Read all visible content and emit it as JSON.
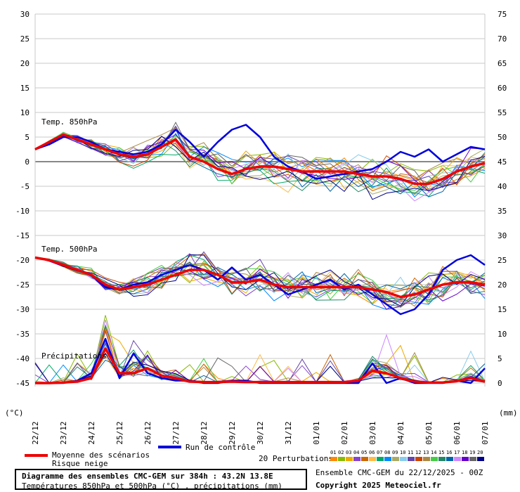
{
  "chart_data": {
    "type": "line",
    "x_dates": [
      "22/12",
      "23/12",
      "24/12",
      "25/12",
      "26/12",
      "27/12",
      "28/12",
      "29/12",
      "30/12",
      "31/12",
      "01/01",
      "02/01",
      "03/01",
      "04/01",
      "05/01",
      "06/01",
      "07/01"
    ],
    "left_axis": {
      "unit_label": "(°C)",
      "ticks": [
        30,
        25,
        20,
        15,
        10,
        5,
        0,
        -5,
        -10,
        -15,
        -20,
        -25,
        -30,
        -35,
        -40,
        -45
      ],
      "range": [
        -45,
        30
      ]
    },
    "right_axis": {
      "unit_label": "(mm)",
      "ticks": [
        75,
        70,
        65,
        60,
        55,
        50,
        45,
        40,
        35,
        30,
        25,
        20,
        15,
        10,
        5,
        0
      ],
      "range": [
        0,
        75
      ]
    },
    "panel_labels": {
      "t850": "Temp. 850hPa",
      "t500": "Temp. 500hPa",
      "precip": "Précipitations"
    },
    "series": [
      {
        "name": "Moyenne des scénarios",
        "color": "#ee0000",
        "group": "t850",
        "x": [
          0,
          0.5,
          1,
          1.5,
          2,
          2.5,
          3,
          3.5,
          4,
          4.5,
          5,
          5.5,
          6,
          6.5,
          7,
          7.5,
          8,
          8.5,
          9,
          9.5,
          10,
          10.5,
          11,
          11.5,
          12,
          12.5,
          13,
          13.5,
          14,
          14.5,
          15,
          15.5,
          16
        ],
        "y": [
          2.5,
          4,
          5.5,
          4.5,
          3.5,
          2.5,
          1.5,
          1,
          1.5,
          3,
          4.5,
          1,
          0,
          -1.5,
          -2.5,
          -1.5,
          -1,
          -1,
          -1.5,
          -2,
          -2,
          -2,
          -2,
          -2.5,
          -3,
          -3,
          -3.5,
          -4.5,
          -4.5,
          -3.5,
          -2,
          -1,
          -0.3
        ]
      },
      {
        "name": "Moyenne des scénarios",
        "color": "#ee0000",
        "group": "t500",
        "x": [
          0,
          0.5,
          1,
          1.5,
          2,
          2.5,
          3,
          3.5,
          4,
          4.5,
          5,
          5.5,
          6,
          6.5,
          7,
          7.5,
          8,
          8.5,
          9,
          9.5,
          10,
          10.5,
          11,
          11.5,
          12,
          12.5,
          13,
          13.5,
          14,
          14.5,
          15,
          15.5,
          16
        ],
        "y": [
          -19.5,
          -20,
          -21,
          -22,
          -23,
          -25,
          -26,
          -25.5,
          -25,
          -24,
          -23,
          -22,
          -22,
          -23,
          -24.5,
          -24.5,
          -24,
          -25,
          -25.5,
          -25.5,
          -25.5,
          -25.5,
          -25.5,
          -25.5,
          -26,
          -26.5,
          -27.5,
          -27,
          -26,
          -25,
          -24.5,
          -24.5,
          -25
        ]
      },
      {
        "name": "Moyenne des scénarios",
        "color": "#ee0000",
        "group": "precip",
        "x": [
          0,
          0.5,
          1,
          1.5,
          2,
          2.5,
          3,
          3.5,
          4,
          4.5,
          5,
          5.5,
          6,
          6.5,
          7,
          7.5,
          8,
          8.5,
          9,
          9.5,
          10,
          10.5,
          11,
          11.5,
          12,
          12.5,
          13,
          13.5,
          14,
          14.5,
          15,
          15.5,
          16
        ],
        "y": [
          0,
          0,
          0.1,
          0.3,
          1,
          7,
          2,
          2,
          3,
          1.5,
          1,
          0.3,
          0.2,
          0.2,
          0.3,
          0.2,
          0.2,
          0.2,
          0.2,
          0.2,
          0.2,
          0.2,
          0.2,
          0.5,
          2.5,
          2,
          1,
          0.3,
          0.1,
          0.1,
          0.4,
          1,
          0.3
        ]
      },
      {
        "name": "Run de contrôle",
        "color": "#0000dd",
        "group": "t850",
        "x": [
          0,
          0.5,
          1,
          1.5,
          2,
          2.5,
          3,
          3.5,
          4,
          4.5,
          5,
          5.5,
          6,
          6.5,
          7,
          7.5,
          8,
          8.5,
          9,
          9.5,
          10,
          10.5,
          11,
          11.5,
          12,
          12.5,
          13,
          13.5,
          14,
          14.5,
          15,
          15.5,
          16
        ],
        "y": [
          2.5,
          3.5,
          5,
          5,
          4,
          2.5,
          2,
          1.5,
          2,
          3.5,
          6.5,
          4,
          1,
          4,
          6.5,
          7.5,
          5,
          1,
          -1,
          -2,
          -3.5,
          -3,
          -2.5,
          -2,
          -1.5,
          0,
          2,
          1,
          2.5,
          0,
          1.5,
          3,
          2.5
        ]
      },
      {
        "name": "Run de contrôle",
        "color": "#0000dd",
        "group": "t500",
        "x": [
          0,
          0.5,
          1,
          1.5,
          2,
          2.5,
          3,
          3.5,
          4,
          4.5,
          5,
          5.5,
          6,
          6.5,
          7,
          7.5,
          8,
          8.5,
          9,
          9.5,
          10,
          10.5,
          11,
          11.5,
          12,
          12.5,
          13,
          13.5,
          14,
          14.5,
          15,
          15.5,
          16
        ],
        "y": [
          -19.5,
          -20,
          -21,
          -22,
          -23,
          -25.5,
          -26,
          -25,
          -24.5,
          -23,
          -22,
          -21,
          -22,
          -24,
          -21.5,
          -24,
          -23,
          -25,
          -27,
          -26,
          -25,
          -24,
          -26,
          -25,
          -27,
          -29,
          -31,
          -30,
          -27,
          -22,
          -20,
          -19,
          -21
        ]
      },
      {
        "name": "Run de contrôle",
        "color": "#0000dd",
        "group": "precip",
        "x": [
          0,
          0.5,
          1,
          1.5,
          2,
          2.5,
          3,
          3.5,
          4,
          4.5,
          5,
          5.5,
          6,
          6.5,
          7,
          7.5,
          8,
          8.5,
          9,
          9.5,
          10,
          10.5,
          11,
          11.5,
          12,
          12.5,
          13,
          13.5,
          14,
          14.5,
          15,
          15.5,
          16
        ],
        "y": [
          0,
          0,
          0,
          0.5,
          2,
          9,
          1,
          6,
          2,
          1,
          0.5,
          0.5,
          0,
          0,
          0.5,
          0.5,
          0,
          0,
          0,
          0,
          0,
          0,
          0,
          0,
          4,
          0,
          1,
          0,
          0,
          0,
          0.5,
          0,
          3
        ]
      }
    ],
    "perturbation_colors": [
      "#ff8800",
      "#88bb00",
      "#eeaa00",
      "#8844cc",
      "#cc6600",
      "#ffbb44",
      "#00aa66",
      "#0088ff",
      "#aaaa66",
      "#88ccee",
      "#6644aa",
      "#cc4400",
      "#aa8844",
      "#44cc44",
      "#228866",
      "#0066aa",
      "#cc88ff",
      "#6600cc",
      "#666666",
      "#000088"
    ],
    "perturbation_codes": [
      "01",
      "02",
      "03",
      "04",
      "05",
      "06",
      "07",
      "08",
      "09",
      "10",
      "11",
      "12",
      "13",
      "14",
      "15",
      "16",
      "17",
      "18",
      "19",
      "20"
    ]
  },
  "legend": {
    "mean_label": "Moyenne des scénarios",
    "snow_label": "Risque neige",
    "control_label": "Run de contrôle",
    "perturbations_label": "20 Perturbations"
  },
  "footer": {
    "title": "Diagramme des ensembles CMC-GEM sur 384h : 43.2N 13.8E",
    "subtitle": "Températures 850hPa et 500hPa (°C) , précipitations (mm)",
    "run_info": "Ensemble CMC-GEM du 22/12/2025 - 00Z",
    "copyright": "Copyright 2025 Meteociel.fr"
  }
}
